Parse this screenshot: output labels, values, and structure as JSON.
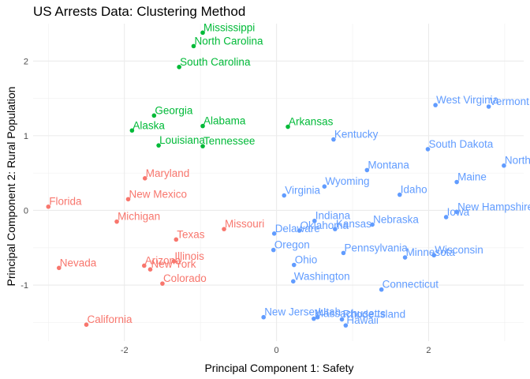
{
  "chart_data": {
    "type": "scatter",
    "title": "US Arrests Data: Clustering Method",
    "xlabel": "Principal Component 1: Safety",
    "ylabel": "Principal Component 2: Rural Population",
    "xlim": [
      -3.2,
      3.25
    ],
    "ylim": [
      -1.75,
      2.5
    ],
    "x_ticks": [
      -2,
      0,
      2
    ],
    "y_ticks": [
      -1,
      0,
      1,
      2
    ],
    "x_minor": [
      -3,
      -1,
      1,
      3
    ],
    "y_minor": [
      -1.5,
      -0.5,
      0.5,
      1.5
    ],
    "grid": true,
    "legend": "none",
    "series_colors": [
      "#F8766D",
      "#00BA38",
      "#619CFF"
    ],
    "points": [
      {
        "label": "Mississippi",
        "x": -0.97,
        "y": 2.38,
        "group": 2
      },
      {
        "label": "North Carolina",
        "x": -1.09,
        "y": 2.2,
        "group": 2
      },
      {
        "label": "South Carolina",
        "x": -1.28,
        "y": 1.92,
        "group": 2
      },
      {
        "label": "Georgia",
        "x": -1.61,
        "y": 1.27,
        "group": 2
      },
      {
        "label": "Alaska",
        "x": -1.9,
        "y": 1.07,
        "group": 2
      },
      {
        "label": "Alabama",
        "x": -0.97,
        "y": 1.13,
        "group": 2
      },
      {
        "label": "Arkansas",
        "x": 0.15,
        "y": 1.12,
        "group": 2
      },
      {
        "label": "Louisiana",
        "x": -1.55,
        "y": 0.87,
        "group": 2
      },
      {
        "label": "Tennessee",
        "x": -0.97,
        "y": 0.86,
        "group": 2
      },
      {
        "label": "Maryland",
        "x": -1.73,
        "y": 0.43,
        "group": 1
      },
      {
        "label": "New Mexico",
        "x": -1.95,
        "y": 0.15,
        "group": 1
      },
      {
        "label": "Florida",
        "x": -3.0,
        "y": 0.05,
        "group": 1
      },
      {
        "label": "Michigan",
        "x": -2.1,
        "y": -0.15,
        "group": 1
      },
      {
        "label": "Missouri",
        "x": -0.69,
        "y": -0.25,
        "group": 1
      },
      {
        "label": "Texas",
        "x": -1.32,
        "y": -0.39,
        "group": 1
      },
      {
        "label": "Illinois",
        "x": -1.35,
        "y": -0.68,
        "group": 1
      },
      {
        "label": "Arizona",
        "x": -1.74,
        "y": -0.74,
        "group": 1
      },
      {
        "label": "New York",
        "x": -1.66,
        "y": -0.79,
        "group": 1
      },
      {
        "label": "Nevada",
        "x": -2.86,
        "y": -0.77,
        "group": 1
      },
      {
        "label": "Colorado",
        "x": -1.5,
        "y": -0.98,
        "group": 1
      },
      {
        "label": "California",
        "x": -2.5,
        "y": -1.53,
        "group": 1
      },
      {
        "label": "West Virginia",
        "x": 2.09,
        "y": 1.41,
        "group": 3
      },
      {
        "label": "Vermont",
        "x": 2.79,
        "y": 1.39,
        "group": 3
      },
      {
        "label": "Kentucky",
        "x": 0.75,
        "y": 0.95,
        "group": 3
      },
      {
        "label": "South Dakota",
        "x": 1.99,
        "y": 0.82,
        "group": 3
      },
      {
        "label": "North Dakota",
        "x": 2.99,
        "y": 0.6,
        "group": 3
      },
      {
        "label": "Montana",
        "x": 1.19,
        "y": 0.54,
        "group": 3
      },
      {
        "label": "Maine",
        "x": 2.37,
        "y": 0.38,
        "group": 3
      },
      {
        "label": "Wyoming",
        "x": 0.63,
        "y": 0.32,
        "group": 3
      },
      {
        "label": "Idaho",
        "x": 1.62,
        "y": 0.21,
        "group": 3
      },
      {
        "label": "Virginia",
        "x": 0.1,
        "y": 0.2,
        "group": 3
      },
      {
        "label": "New Hampshire",
        "x": 2.37,
        "y": -0.02,
        "group": 3
      },
      {
        "label": "Iowa",
        "x": 2.23,
        "y": -0.09,
        "group": 3
      },
      {
        "label": "Indiana",
        "x": 0.5,
        "y": -0.14,
        "group": 3
      },
      {
        "label": "Nebraska",
        "x": 1.26,
        "y": -0.19,
        "group": 3
      },
      {
        "label": "Kansas",
        "x": 0.77,
        "y": -0.25,
        "group": 3
      },
      {
        "label": "Oklahoma",
        "x": 0.3,
        "y": -0.27,
        "group": 3
      },
      {
        "label": "Delaware",
        "x": -0.03,
        "y": -0.31,
        "group": 3
      },
      {
        "label": "Oregon",
        "x": -0.04,
        "y": -0.53,
        "group": 3
      },
      {
        "label": "Pennsylvania",
        "x": 0.88,
        "y": -0.57,
        "group": 3
      },
      {
        "label": "Wisconsin",
        "x": 2.07,
        "y": -0.6,
        "group": 3
      },
      {
        "label": "Minnesota",
        "x": 1.69,
        "y": -0.63,
        "group": 3
      },
      {
        "label": "Ohio",
        "x": 0.23,
        "y": -0.73,
        "group": 3
      },
      {
        "label": "Washington",
        "x": 0.22,
        "y": -0.95,
        "group": 3
      },
      {
        "label": "Connecticut",
        "x": 1.38,
        "y": -1.06,
        "group": 3
      },
      {
        "label": "New Jersey",
        "x": -0.17,
        "y": -1.43,
        "group": 3
      },
      {
        "label": "Massachusetts",
        "x": 0.49,
        "y": -1.45,
        "group": 3
      },
      {
        "label": "Utah",
        "x": 0.54,
        "y": -1.43,
        "group": 3
      },
      {
        "label": "Rhode Island",
        "x": 0.86,
        "y": -1.46,
        "group": 3
      },
      {
        "label": "Hawaii",
        "x": 0.91,
        "y": -1.54,
        "group": 3
      }
    ]
  }
}
